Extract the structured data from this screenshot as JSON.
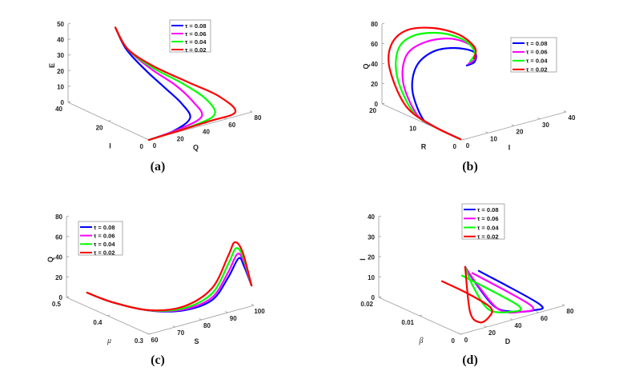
{
  "series": [
    {
      "label": "τ = 0.08",
      "color": "#0000ff"
    },
    {
      "label": "τ = 0.06",
      "color": "#ff00ff"
    },
    {
      "label": "τ = 0.04",
      "color": "#00ff00"
    },
    {
      "label": "τ = 0.02",
      "color": "#ff0000"
    }
  ],
  "chart_data": [
    {
      "type": "line3d",
      "caption": "(a)",
      "legend_position": "top-right",
      "point_order": [
        "Q",
        "I",
        "E"
      ],
      "axes": {
        "right": {
          "label": "Q",
          "range": [
            0,
            80
          ],
          "ticks": [
            0,
            20,
            40,
            60,
            80
          ]
        },
        "left": {
          "label": "I",
          "range": [
            0,
            40
          ],
          "ticks": [
            0,
            20,
            40
          ]
        },
        "vertical": {
          "label": "E",
          "range": [
            0,
            50
          ],
          "ticks": [
            0,
            10,
            20,
            30,
            40,
            50
          ]
        }
      },
      "series_points": [
        [
          [
            0,
            0,
            0
          ],
          [
            20,
            0.5,
            1
          ],
          [
            35,
            2,
            5
          ],
          [
            33,
            5,
            13
          ],
          [
            28,
            10,
            21
          ],
          [
            24,
            17,
            29
          ],
          [
            20,
            24,
            39
          ],
          [
            21,
            30,
            49
          ]
        ],
        [
          [
            0,
            0,
            0
          ],
          [
            25,
            0.7,
            1
          ],
          [
            44,
            2,
            4
          ],
          [
            42,
            5,
            12
          ],
          [
            36,
            10,
            21
          ],
          [
            28,
            17,
            29
          ],
          [
            21,
            24,
            39
          ],
          [
            21,
            30,
            49
          ]
        ],
        [
          [
            0,
            0,
            0
          ],
          [
            35,
            0.8,
            0.7
          ],
          [
            54,
            2,
            3
          ],
          [
            52,
            5,
            11.5
          ],
          [
            42,
            10,
            20.5
          ],
          [
            30,
            17.5,
            29
          ],
          [
            21,
            24,
            39
          ],
          [
            21,
            30,
            49
          ]
        ],
        [
          [
            0,
            0,
            0
          ],
          [
            47,
            1,
            0.5
          ],
          [
            70,
            2,
            1
          ],
          [
            62,
            5,
            11
          ],
          [
            47,
            10,
            20
          ],
          [
            32,
            18,
            29
          ],
          [
            21,
            24,
            39
          ],
          [
            21,
            30,
            49
          ]
        ]
      ]
    },
    {
      "type": "line3d",
      "caption": "(b)",
      "legend_position": "right",
      "point_order": [
        "I",
        "R",
        "Q"
      ],
      "axes": {
        "right": {
          "label": "I",
          "range": [
            0,
            40
          ],
          "ticks": [
            0,
            10,
            20,
            30,
            40
          ]
        },
        "left": {
          "label": "R",
          "range": [
            0,
            20
          ],
          "ticks": [
            0,
            10,
            20
          ]
        },
        "vertical": {
          "label": "Q",
          "range": [
            0,
            80
          ],
          "ticks": [
            0,
            20,
            40,
            60,
            80
          ]
        }
      },
      "series_points": [
        [
          [
            0,
            0.4,
            0
          ],
          [
            0.5,
            7.5,
            0
          ],
          [
            1,
            10.65,
            2.5
          ],
          [
            2,
            13.7,
            23.5
          ],
          [
            4,
            14,
            45.6
          ],
          [
            8,
            12.6,
            59.7
          ],
          [
            14,
            11.1,
            62.2
          ],
          [
            20,
            10,
            56
          ],
          [
            22,
            11.1,
            43
          ],
          [
            20,
            11.8,
            39.2
          ]
        ],
        [
          [
            0,
            0.4,
            0
          ],
          [
            0.5,
            7.5,
            0
          ],
          [
            1,
            12,
            3.5
          ],
          [
            2,
            16,
            27
          ],
          [
            4,
            16.5,
            52
          ],
          [
            8,
            14.5,
            66
          ],
          [
            14,
            12,
            70
          ],
          [
            20,
            10.5,
            61
          ],
          [
            22,
            11.1,
            46
          ],
          [
            21,
            12,
            40
          ]
        ],
        [
          [
            0,
            0.4,
            0
          ],
          [
            0.5,
            7.5,
            0
          ],
          [
            1,
            13,
            4.5
          ],
          [
            2,
            17.5,
            30
          ],
          [
            4,
            18.5,
            55
          ],
          [
            7,
            16.5,
            70
          ],
          [
            12,
            13,
            75
          ],
          [
            18,
            11,
            67
          ],
          [
            22,
            11.1,
            52
          ],
          [
            22,
            12.3,
            41
          ]
        ],
        [
          [
            0,
            0.4,
            0
          ],
          [
            0.5,
            7.5,
            0
          ],
          [
            1,
            14.6,
            6.5
          ],
          [
            2,
            19.3,
            34
          ],
          [
            3,
            19.7,
            57
          ],
          [
            6,
            17.9,
            73
          ],
          [
            10,
            13.9,
            80
          ],
          [
            16,
            11.2,
            74
          ],
          [
            22,
            11.1,
            57
          ],
          [
            24,
            12.6,
            42
          ]
        ]
      ]
    },
    {
      "type": "line3d",
      "caption": "(c)",
      "legend_position": "top-left",
      "point_order": [
        "S",
        "μ",
        "Q"
      ],
      "axes": {
        "right": {
          "label": "S",
          "range": [
            60,
            100
          ],
          "ticks": [
            60,
            70,
            80,
            90,
            100
          ]
        },
        "left": {
          "label": "μ",
          "range": [
            0.3,
            0.5
          ],
          "ticks": [
            0.3,
            0.4,
            0.5
          ]
        },
        "vertical": {
          "label": "Q",
          "range": [
            0,
            80
          ],
          "ticks": [
            0,
            20,
            40,
            60,
            80
          ]
        }
      },
      "series_points": [
        [
          [
            60,
            0.45,
            13.9
          ],
          [
            61.7,
            0.4,
            12.3
          ],
          [
            68.2,
            0.35,
            8.5
          ],
          [
            78.2,
            0.33,
            5.3
          ],
          [
            87.3,
            0.32,
            10.9
          ],
          [
            91.8,
            0.31,
            31.8
          ],
          [
            95,
            0.305,
            49.4
          ],
          [
            96.6,
            0.302,
            40.8
          ],
          [
            99.1,
            0.3,
            20.4
          ]
        ],
        [
          [
            60,
            0.45,
            13.9
          ],
          [
            61.7,
            0.4,
            12.3
          ],
          [
            68.2,
            0.35,
            8.6
          ],
          [
            78.2,
            0.33,
            6.3
          ],
          [
            87.3,
            0.32,
            13.5
          ],
          [
            91.8,
            0.31,
            37
          ],
          [
            94.5,
            0.305,
            54
          ],
          [
            96.4,
            0.302,
            46
          ],
          [
            99.1,
            0.3,
            20.4
          ]
        ],
        [
          [
            60,
            0.45,
            13.9
          ],
          [
            61.7,
            0.4,
            12.3
          ],
          [
            68.2,
            0.35,
            8.7
          ],
          [
            78.2,
            0.33,
            7.5
          ],
          [
            87.3,
            0.32,
            17.5
          ],
          [
            91.8,
            0.31,
            45
          ],
          [
            94,
            0.305,
            60
          ],
          [
            96.2,
            0.302,
            50.5
          ],
          [
            99.1,
            0.3,
            20.4
          ]
        ],
        [
          [
            60,
            0.45,
            13.9
          ],
          [
            61.7,
            0.4,
            12.3
          ],
          [
            68.2,
            0.35,
            8.8
          ],
          [
            78.2,
            0.33,
            9.3
          ],
          [
            87.3,
            0.32,
            22.8
          ],
          [
            91.8,
            0.31,
            53.1
          ],
          [
            93.5,
            0.305,
            66.3
          ],
          [
            96,
            0.302,
            55.5
          ],
          [
            99.1,
            0.3,
            20.4
          ]
        ]
      ]
    },
    {
      "type": "line3d",
      "caption": "(d)",
      "legend_position": "top",
      "point_order": [
        "D",
        "β",
        "I"
      ],
      "axes": {
        "right": {
          "label": "D",
          "range": [
            0,
            80
          ],
          "ticks": [
            0,
            20,
            40,
            60,
            80
          ]
        },
        "left": {
          "label": "β",
          "range": [
            0,
            0.02
          ],
          "ticks": [
            0,
            0.01,
            0.02
          ]
        },
        "vertical": {
          "label": "I",
          "range": [
            0,
            40
          ],
          "ticks": [
            0,
            10,
            20,
            30,
            40
          ]
        }
      },
      "series_points": [
        [
          [
            20.4,
            0.002,
            25.9
          ],
          [
            66.6,
            0.002,
            1.4
          ],
          [
            59.8,
            0.001,
            0.3
          ],
          [
            43.1,
            0.001,
            2.6
          ],
          [
            29,
            0.001,
            7.8
          ],
          [
            14.2,
            0.001,
            22.4
          ],
          [
            6.8,
            0.001,
            31.2
          ]
        ],
        [
          [
            15.5,
            0.002,
            25.7
          ],
          [
            60.4,
            0.002,
            1.7
          ],
          [
            49.3,
            0.001,
            1.4
          ],
          [
            32.7,
            0.001,
            5.5
          ],
          [
            16.7,
            0.001,
            20.2
          ],
          [
            6.8,
            0.001,
            31.2
          ]
        ],
        [
          [
            7.5,
            0.002,
            25.9
          ],
          [
            50.6,
            0.002,
            3.4
          ],
          [
            41.3,
            0.001,
            2.8
          ],
          [
            24.7,
            0.001,
            7
          ],
          [
            12.4,
            0.001,
            21.2
          ],
          [
            6.8,
            0.001,
            31.2
          ]
        ],
        [
          [
            23.5,
            0.012,
            11.1
          ],
          [
            31.3,
            0.008,
            7.1
          ],
          [
            39.1,
            0.005,
            1.5
          ],
          [
            31,
            0.003,
            0
          ],
          [
            17.9,
            0.001,
            1.8
          ],
          [
            10.5,
            0.001,
            8.3
          ],
          [
            6.8,
            0.001,
            31.2
          ]
        ]
      ]
    }
  ]
}
